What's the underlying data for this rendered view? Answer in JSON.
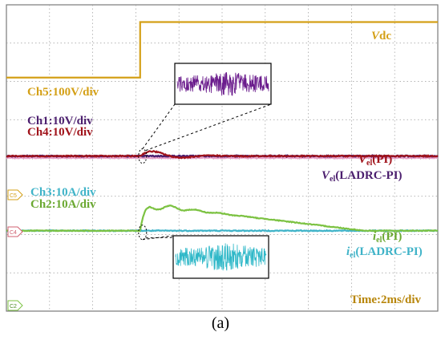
{
  "caption": "(a)",
  "colors": {
    "ch5": "#d4a017",
    "ch1": "#4b1e6e",
    "ch4": "#a0121a",
    "ch3": "#3fb3c8",
    "ch2": "#7cc242",
    "grid": "#9a9a9a",
    "border": "#7a7a7a",
    "inset_purple": "#6a1b8c",
    "inset_cyan": "#2fb8c8",
    "time_label": "#b8860b"
  },
  "labels": {
    "vdc_v": "V",
    "vdc_rest": "dc",
    "ch5": "Ch5:100V/div",
    "ch1": "Ch1:10V/div",
    "ch4": "Ch4:10V/div",
    "ch3": "Ch3:10A/div",
    "ch2": "Ch2:10A/div",
    "vel_pi_v": "V",
    "vel_pi_sub": "el",
    "vel_pi_rest": "(PI)",
    "vel_ladrc_v": "V",
    "vel_ladrc_sub": "el",
    "vel_ladrc_rest": "(LADRC-PI)",
    "iel_pi_i": "i",
    "iel_pi_sub": "el",
    "iel_pi_rest": "(PI)",
    "iel_ladrc_i": "i",
    "iel_ladrc_sub": "el",
    "iel_ladrc_rest": "(LADRC-PI)",
    "time": "Time:2ms/div",
    "marker_c5": "C5",
    "marker_c4": "C4",
    "marker_c2": "C2"
  },
  "chart_data": {
    "type": "line",
    "title": "",
    "x_unit": "div",
    "time_scale": "2ms/div",
    "x_range": [
      0,
      10
    ],
    "y_range": [
      -4,
      4
    ],
    "grid": true,
    "step_time_div": 3.1,
    "series": [
      {
        "name": "Vdc",
        "channel": "Ch5",
        "scale": "100V/div",
        "before_level_div": 2.1,
        "after_level_div": 3.55
      },
      {
        "name": "Vel(PI)",
        "channel": "Ch4",
        "scale": "10V/div",
        "level_div": 0.05,
        "disturbance_peak_div": 0.2
      },
      {
        "name": "Vel(LADRC-PI)",
        "channel": "Ch1",
        "scale": "10V/div",
        "level_div": 0.05
      },
      {
        "name": "iel(PI)",
        "channel": "Ch2",
        "scale": "10A/div",
        "level_div": -1.9,
        "peak_div": -1.2,
        "settle_time_div": 8.3
      },
      {
        "name": "iel(LADRC-PI)",
        "channel": "Ch3",
        "scale": "10A/div",
        "level_div": -1.9
      }
    ]
  }
}
